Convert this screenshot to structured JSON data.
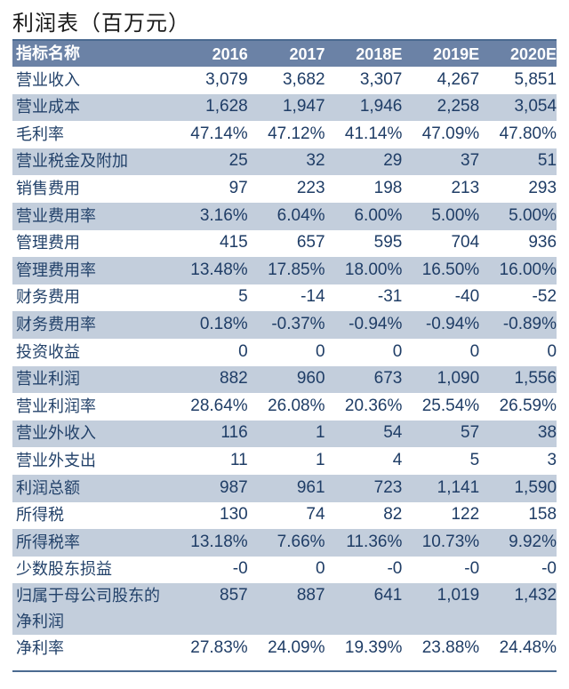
{
  "title": "利润表（百万元）",
  "table": {
    "header": [
      "指标名称",
      "2016",
      "2017",
      "2018E",
      "2019E",
      "2020E"
    ],
    "rows": [
      {
        "label": "营业收入",
        "values": [
          "3,079",
          "3,682",
          "3,307",
          "4,267",
          "5,851"
        ]
      },
      {
        "label": "营业成本",
        "values": [
          "1,628",
          "1,947",
          "1,946",
          "2,258",
          "3,054"
        ]
      },
      {
        "label": "毛利率",
        "values": [
          "47.14%",
          "47.12%",
          "41.14%",
          "47.09%",
          "47.80%"
        ]
      },
      {
        "label": "营业税金及附加",
        "values": [
          "25",
          "32",
          "29",
          "37",
          "51"
        ]
      },
      {
        "label": "销售费用",
        "values": [
          "97",
          "223",
          "198",
          "213",
          "293"
        ]
      },
      {
        "label": "营业费用率",
        "values": [
          "3.16%",
          "6.04%",
          "6.00%",
          "5.00%",
          "5.00%"
        ]
      },
      {
        "label": "管理费用",
        "values": [
          "415",
          "657",
          "595",
          "704",
          "936"
        ]
      },
      {
        "label": "管理费用率",
        "values": [
          "13.48%",
          "17.85%",
          "18.00%",
          "16.50%",
          "16.00%"
        ]
      },
      {
        "label": "财务费用",
        "values": [
          "5",
          "-14",
          "-31",
          "-40",
          "-52"
        ]
      },
      {
        "label": "财务费用率",
        "values": [
          "0.18%",
          "-0.37%",
          "-0.94%",
          "-0.94%",
          "-0.89%"
        ]
      },
      {
        "label": "投资收益",
        "values": [
          "0",
          "0",
          "0",
          "0",
          "0"
        ]
      },
      {
        "label": "营业利润",
        "values": [
          "882",
          "960",
          "673",
          "1,090",
          "1,556"
        ]
      },
      {
        "label": "营业利润率",
        "values": [
          "28.64%",
          "26.08%",
          "20.36%",
          "25.54%",
          "26.59%"
        ]
      },
      {
        "label": "营业外收入",
        "values": [
          "116",
          "1",
          "54",
          "57",
          "38"
        ]
      },
      {
        "label": "营业外支出",
        "values": [
          "11",
          "1",
          "4",
          "5",
          "3"
        ]
      },
      {
        "label": "利润总额",
        "values": [
          "987",
          "961",
          "723",
          "1,141",
          "1,590"
        ]
      },
      {
        "label": "所得税",
        "values": [
          "130",
          "74",
          "82",
          "122",
          "158"
        ]
      },
      {
        "label": "所得税率",
        "values": [
          "13.18%",
          "7.66%",
          "11.36%",
          "10.73%",
          "9.92%"
        ]
      },
      {
        "label": "少数股东损益",
        "values": [
          "-0",
          "0",
          "-0",
          "-0",
          "-0"
        ]
      },
      {
        "label": "归属于母公司股东的净利润",
        "values": [
          "857",
          "887",
          "641",
          "1,019",
          "1,432"
        ]
      },
      {
        "label": "净利率",
        "values": [
          "27.83%",
          "24.09%",
          "19.39%",
          "23.88%",
          "24.48%"
        ]
      }
    ]
  },
  "colors": {
    "header_bg": "#6b82a6",
    "alt_row_bg": "#c3cedc",
    "text": "#1f3d66"
  }
}
